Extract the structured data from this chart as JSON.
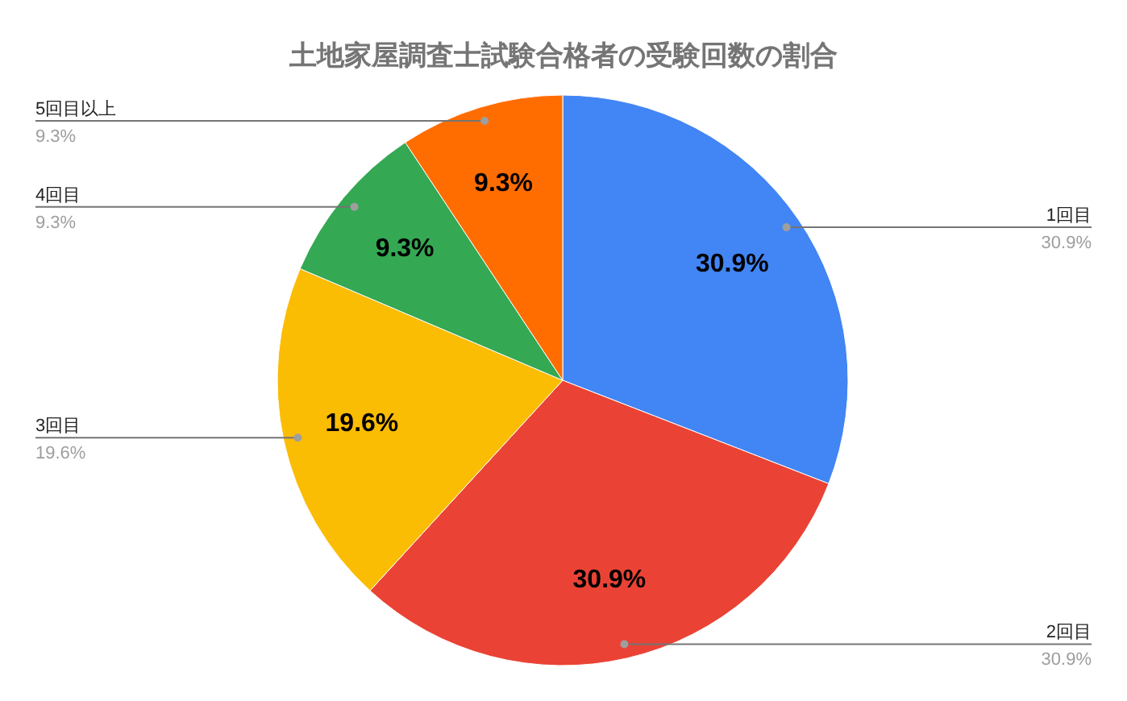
{
  "chart_data": {
    "type": "pie",
    "title": "土地家屋調査士試験合格者の受験回数の割合",
    "categories": [
      "1回目",
      "2回目",
      "3回目",
      "4回目",
      "5回目以上"
    ],
    "values": [
      30.9,
      30.9,
      19.6,
      9.3,
      9.3
    ],
    "value_labels": [
      "30.9%",
      "30.9%",
      "19.6%",
      "9.3%",
      "9.3%"
    ],
    "colors": [
      "#4285f4",
      "#ea4335",
      "#fbbc04",
      "#34a853",
      "#ff6d01"
    ]
  }
}
